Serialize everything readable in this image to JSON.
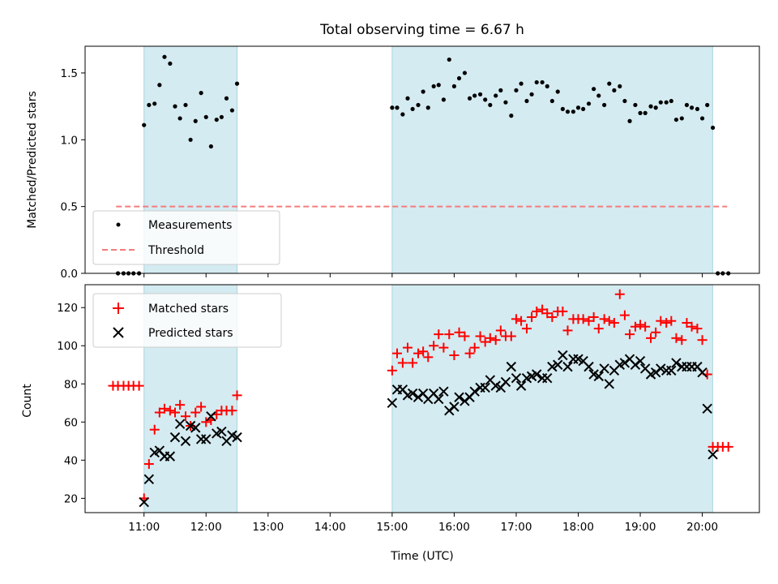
{
  "chart_data": {
    "title": "Total observing time = 6.67 h",
    "shade_color": "#d4ebf1",
    "observing_windows": [
      [
        11.0,
        12.5
      ],
      [
        15.0,
        20.167
      ]
    ],
    "x_ticks": [
      11,
      12,
      13,
      14,
      15,
      16,
      17,
      18,
      19,
      20
    ],
    "x_tick_labels": [
      "11:00",
      "12:00",
      "13:00",
      "14:00",
      "15:00",
      "16:00",
      "17:00",
      "18:00",
      "19:00",
      "20:00"
    ],
    "xlabel": "Time (UTC)",
    "xlim": [
      10.05,
      20.92
    ],
    "top": {
      "type": "scatter",
      "ylabel": "Matched/Predicted stars",
      "ylim": [
        0,
        1.7
      ],
      "y_ticks": [
        0.0,
        0.5,
        1.0,
        1.5
      ],
      "y_tick_labels": [
        "0.0",
        "0.5",
        "1.0",
        "1.5"
      ],
      "legend": {
        "position": "lower-left",
        "entries": [
          "Measurements",
          "Threshold"
        ]
      },
      "threshold": {
        "name": "Threshold",
        "value": 0.5,
        "x_range": [
          10.55,
          20.4
        ],
        "color": "#f47c7c"
      },
      "measurements": {
        "name": "Measurements",
        "color": "#000000",
        "x": [
          10.58,
          10.67,
          10.75,
          10.83,
          10.92,
          11.0,
          11.08,
          11.17,
          11.25,
          11.33,
          11.42,
          11.5,
          11.58,
          11.67,
          11.75,
          11.83,
          11.92,
          12.0,
          12.08,
          12.17,
          12.25,
          12.33,
          12.42,
          12.5,
          15.0,
          15.08,
          15.17,
          15.25,
          15.33,
          15.42,
          15.5,
          15.58,
          15.67,
          15.75,
          15.83,
          15.92,
          16.0,
          16.08,
          16.17,
          16.25,
          16.33,
          16.42,
          16.5,
          16.58,
          16.67,
          16.75,
          16.83,
          16.92,
          17.0,
          17.08,
          17.17,
          17.25,
          17.33,
          17.42,
          17.5,
          17.58,
          17.67,
          17.75,
          17.83,
          17.92,
          18.0,
          18.08,
          18.17,
          18.25,
          18.33,
          18.42,
          18.5,
          18.58,
          18.67,
          18.75,
          18.83,
          18.92,
          19.0,
          19.08,
          19.17,
          19.25,
          19.33,
          19.42,
          19.5,
          19.58,
          19.67,
          19.75,
          19.83,
          19.92,
          20.0,
          20.08,
          20.17,
          20.25,
          20.33,
          20.42
        ],
        "y": [
          0.0,
          0.0,
          0.0,
          0.0,
          0.0,
          1.11,
          1.26,
          1.27,
          1.41,
          1.62,
          1.57,
          1.25,
          1.16,
          1.26,
          1.0,
          1.14,
          1.35,
          1.17,
          0.95,
          1.15,
          1.17,
          1.31,
          1.22,
          1.42,
          1.24,
          1.24,
          1.19,
          1.31,
          1.23,
          1.26,
          1.36,
          1.24,
          1.4,
          1.41,
          1.3,
          1.6,
          1.4,
          1.46,
          1.5,
          1.31,
          1.33,
          1.34,
          1.3,
          1.26,
          1.33,
          1.37,
          1.28,
          1.18,
          1.37,
          1.42,
          1.29,
          1.34,
          1.43,
          1.43,
          1.4,
          1.29,
          1.36,
          1.23,
          1.21,
          1.21,
          1.24,
          1.23,
          1.27,
          1.38,
          1.33,
          1.26,
          1.42,
          1.37,
          1.4,
          1.29,
          1.14,
          1.26,
          1.2,
          1.2,
          1.25,
          1.24,
          1.28,
          1.28,
          1.29,
          1.15,
          1.16,
          1.26,
          1.24,
          1.23,
          1.16,
          1.26,
          1.09,
          0.0,
          0.0,
          0.0
        ]
      }
    },
    "bottom": {
      "type": "scatter",
      "ylabel": "Count",
      "ylim": [
        12.5,
        132
      ],
      "y_ticks": [
        20,
        40,
        60,
        80,
        100,
        120
      ],
      "y_tick_labels": [
        "20",
        "40",
        "60",
        "80",
        "100",
        "120"
      ],
      "legend": {
        "position": "top-left",
        "entries": [
          "Matched stars",
          "Predicted stars"
        ]
      },
      "matched": {
        "name": "Matched stars",
        "color": "#ff0000",
        "marker": "plus",
        "x": [
          10.5,
          10.58,
          10.67,
          10.75,
          10.83,
          10.92,
          11.0,
          11.08,
          11.17,
          11.25,
          11.33,
          11.42,
          11.5,
          11.58,
          11.67,
          11.75,
          11.83,
          11.92,
          12.0,
          12.08,
          12.17,
          12.25,
          12.33,
          12.42,
          12.5,
          15.0,
          15.08,
          15.17,
          15.25,
          15.33,
          15.42,
          15.5,
          15.58,
          15.67,
          15.75,
          15.83,
          15.92,
          16.0,
          16.08,
          16.17,
          16.25,
          16.33,
          16.42,
          16.5,
          16.58,
          16.67,
          16.75,
          16.83,
          16.92,
          17.0,
          17.08,
          17.17,
          17.25,
          17.33,
          17.42,
          17.5,
          17.58,
          17.67,
          17.75,
          17.83,
          17.92,
          18.0,
          18.08,
          18.17,
          18.25,
          18.33,
          18.42,
          18.5,
          18.58,
          18.67,
          18.75,
          18.83,
          18.92,
          19.0,
          19.08,
          19.17,
          19.25,
          19.33,
          19.42,
          19.5,
          19.58,
          19.67,
          19.75,
          19.83,
          19.92,
          20.0,
          20.08,
          20.17,
          20.25,
          20.33,
          20.42
        ],
        "y": [
          79,
          79,
          79,
          79,
          79,
          79,
          20,
          38,
          56,
          65,
          67,
          66,
          65,
          69,
          63,
          58,
          65,
          68,
          60,
          61,
          64,
          66,
          66,
          66,
          74,
          87,
          96,
          91,
          99,
          91,
          96,
          97,
          94,
          100,
          106,
          99,
          106,
          95,
          107,
          105,
          96,
          99,
          105,
          102,
          104,
          103,
          108,
          105,
          105,
          114,
          113,
          109,
          115,
          118,
          119,
          117,
          115,
          118,
          118,
          108,
          114,
          114,
          114,
          113,
          115,
          109,
          114,
          113,
          112,
          127,
          116,
          106,
          110,
          111,
          110,
          104,
          107,
          113,
          112,
          113,
          104,
          103,
          112,
          110,
          109,
          103,
          85,
          47,
          47,
          47,
          47
        ]
      },
      "predicted": {
        "name": "Predicted stars",
        "color": "#000000",
        "marker": "cross",
        "x": [
          11.0,
          11.08,
          11.17,
          11.25,
          11.33,
          11.42,
          11.5,
          11.58,
          11.67,
          11.75,
          11.83,
          11.92,
          12.0,
          12.08,
          12.17,
          12.25,
          12.33,
          12.42,
          12.5,
          15.0,
          15.08,
          15.17,
          15.25,
          15.33,
          15.42,
          15.5,
          15.58,
          15.67,
          15.75,
          15.83,
          15.92,
          16.0,
          16.08,
          16.17,
          16.25,
          16.33,
          16.42,
          16.5,
          16.58,
          16.67,
          16.75,
          16.83,
          16.92,
          17.0,
          17.08,
          17.17,
          17.25,
          17.33,
          17.42,
          17.5,
          17.58,
          17.67,
          17.75,
          17.83,
          17.92,
          18.0,
          18.08,
          18.17,
          18.25,
          18.33,
          18.42,
          18.5,
          18.58,
          18.67,
          18.75,
          18.83,
          18.92,
          19.0,
          19.08,
          19.17,
          19.25,
          19.33,
          19.42,
          19.5,
          19.58,
          19.67,
          19.75,
          19.83,
          19.92,
          20.0,
          20.08,
          20.17
        ],
        "y": [
          18,
          30,
          44,
          45,
          42,
          42,
          52,
          59,
          50,
          58,
          57,
          51,
          51,
          63,
          54,
          55,
          50,
          53,
          52,
          70,
          77,
          77,
          74,
          75,
          73,
          75,
          72,
          75,
          72,
          76,
          66,
          68,
          73,
          71,
          73,
          76,
          78,
          78,
          82,
          79,
          78,
          81,
          89,
          83,
          79,
          83,
          84,
          85,
          83,
          83,
          89,
          90,
          95,
          89,
          93,
          93,
          92,
          89,
          85,
          84,
          88,
          80,
          87,
          90,
          91,
          93,
          90,
          92,
          88,
          85,
          86,
          88,
          87,
          87,
          91,
          89,
          89,
          89,
          89,
          86,
          67,
          43
        ]
      }
    }
  }
}
